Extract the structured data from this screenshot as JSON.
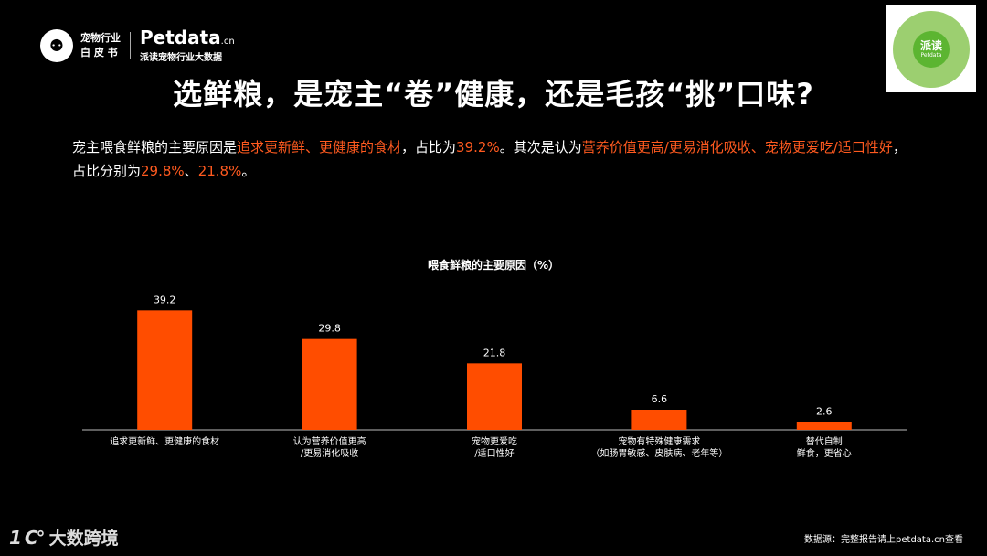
{
  "header": {
    "logo_mark": "⚉",
    "logo_cn_line1": "宠物行业",
    "logo_cn_line2": "白 皮 书",
    "brand_main": "Petdata",
    "brand_suffix": ".cn",
    "brand_sub": "派读宠物行业大数据",
    "qr_label_main": "派读",
    "qr_label_sub": "Petdata"
  },
  "title": "选鲜粮，是宠主“卷”健康，还是毛孩“挑”口味?",
  "description": {
    "p1": "宠主喂食鲜粮的主要原因是",
    "h1": "追求更新鲜、更健康的食材",
    "p2": "，占比为",
    "h2": "39.2%",
    "p3": "。其次是认为",
    "h3": "营养价值更高/更易消化吸收、宠物更爱吃/适口性好",
    "p4": "，占比分别为",
    "h4": "29.8%",
    "p5": "、",
    "h5": "21.8%",
    "p6": "。"
  },
  "chart_data": {
    "type": "bar",
    "title": "喂食鲜粮的主要原因（%）",
    "categories": [
      [
        "追求更新鲜、更健康的食材"
      ],
      [
        "认为营养价值更高",
        "/更易消化吸收"
      ],
      [
        "宠物更爱吃",
        "/适口性好"
      ],
      [
        "宠物有特殊健康需求",
        "（如肠胃敏感、皮肤病、老年等）"
      ],
      [
        "替代自制",
        "鲜食，更省心"
      ]
    ],
    "values": [
      39.2,
      29.8,
      21.8,
      6.6,
      2.6
    ],
    "value_labels": [
      "39.2",
      "29.8",
      "21.8",
      "6.6",
      "2.6"
    ],
    "ylim": [
      0,
      45
    ],
    "bar_color": "#ff4d00",
    "grid": false
  },
  "footer": {
    "logo_mark": "1 C°",
    "logo_text": "大数跨境",
    "source": "数据源：完整报告请上petdata.cn查看"
  },
  "colors": {
    "background": "#000000",
    "accent": "#ff5a1f"
  }
}
